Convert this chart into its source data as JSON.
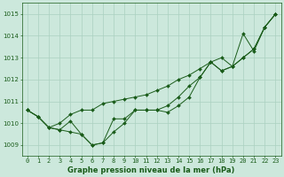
{
  "title": "Graphe pression niveau de la mer (hPa)",
  "background_color": "#cce8dc",
  "grid_color": "#aad0c0",
  "line_color": "#1a5c1a",
  "xlim": [
    -0.5,
    23.5
  ],
  "ylim": [
    1008.5,
    1015.5
  ],
  "yticks": [
    1009,
    1010,
    1011,
    1012,
    1013,
    1014,
    1015
  ],
  "xticks": [
    0,
    1,
    2,
    3,
    4,
    5,
    6,
    7,
    8,
    9,
    10,
    11,
    12,
    13,
    14,
    15,
    16,
    17,
    18,
    19,
    20,
    21,
    22,
    23
  ],
  "hours": [
    0,
    1,
    2,
    3,
    4,
    5,
    6,
    7,
    8,
    9,
    10,
    11,
    12,
    13,
    14,
    15,
    16,
    17,
    18,
    19,
    20,
    21,
    22,
    23
  ],
  "series1": [
    1010.6,
    1010.3,
    1009.8,
    1009.7,
    1010.1,
    1009.5,
    1009.0,
    1009.1,
    1010.2,
    1010.2,
    1010.6,
    1010.6,
    1010.6,
    1010.8,
    1011.2,
    1011.7,
    1012.1,
    1012.8,
    1012.4,
    1012.6,
    1014.1,
    1013.3,
    1014.4,
    1015.0
  ],
  "series2": [
    1010.6,
    1010.3,
    1009.8,
    1010.0,
    1010.4,
    1010.6,
    1010.6,
    1010.9,
    1011.0,
    1011.1,
    1011.2,
    1011.3,
    1011.5,
    1011.7,
    1012.0,
    1012.2,
    1012.5,
    1012.8,
    1013.0,
    1012.6,
    1013.0,
    1013.4,
    1014.4,
    1015.0
  ],
  "series3": [
    1010.6,
    1010.3,
    1009.8,
    1009.7,
    1009.6,
    1009.5,
    1009.0,
    1009.1,
    1009.6,
    1010.0,
    1010.6,
    1010.6,
    1010.6,
    1010.5,
    1010.8,
    1011.2,
    1012.1,
    1012.8,
    1012.4,
    1012.6,
    1013.0,
    1013.4,
    1014.4,
    1015.0
  ],
  "tick_fontsize": 5.0,
  "label_fontsize": 6.0
}
